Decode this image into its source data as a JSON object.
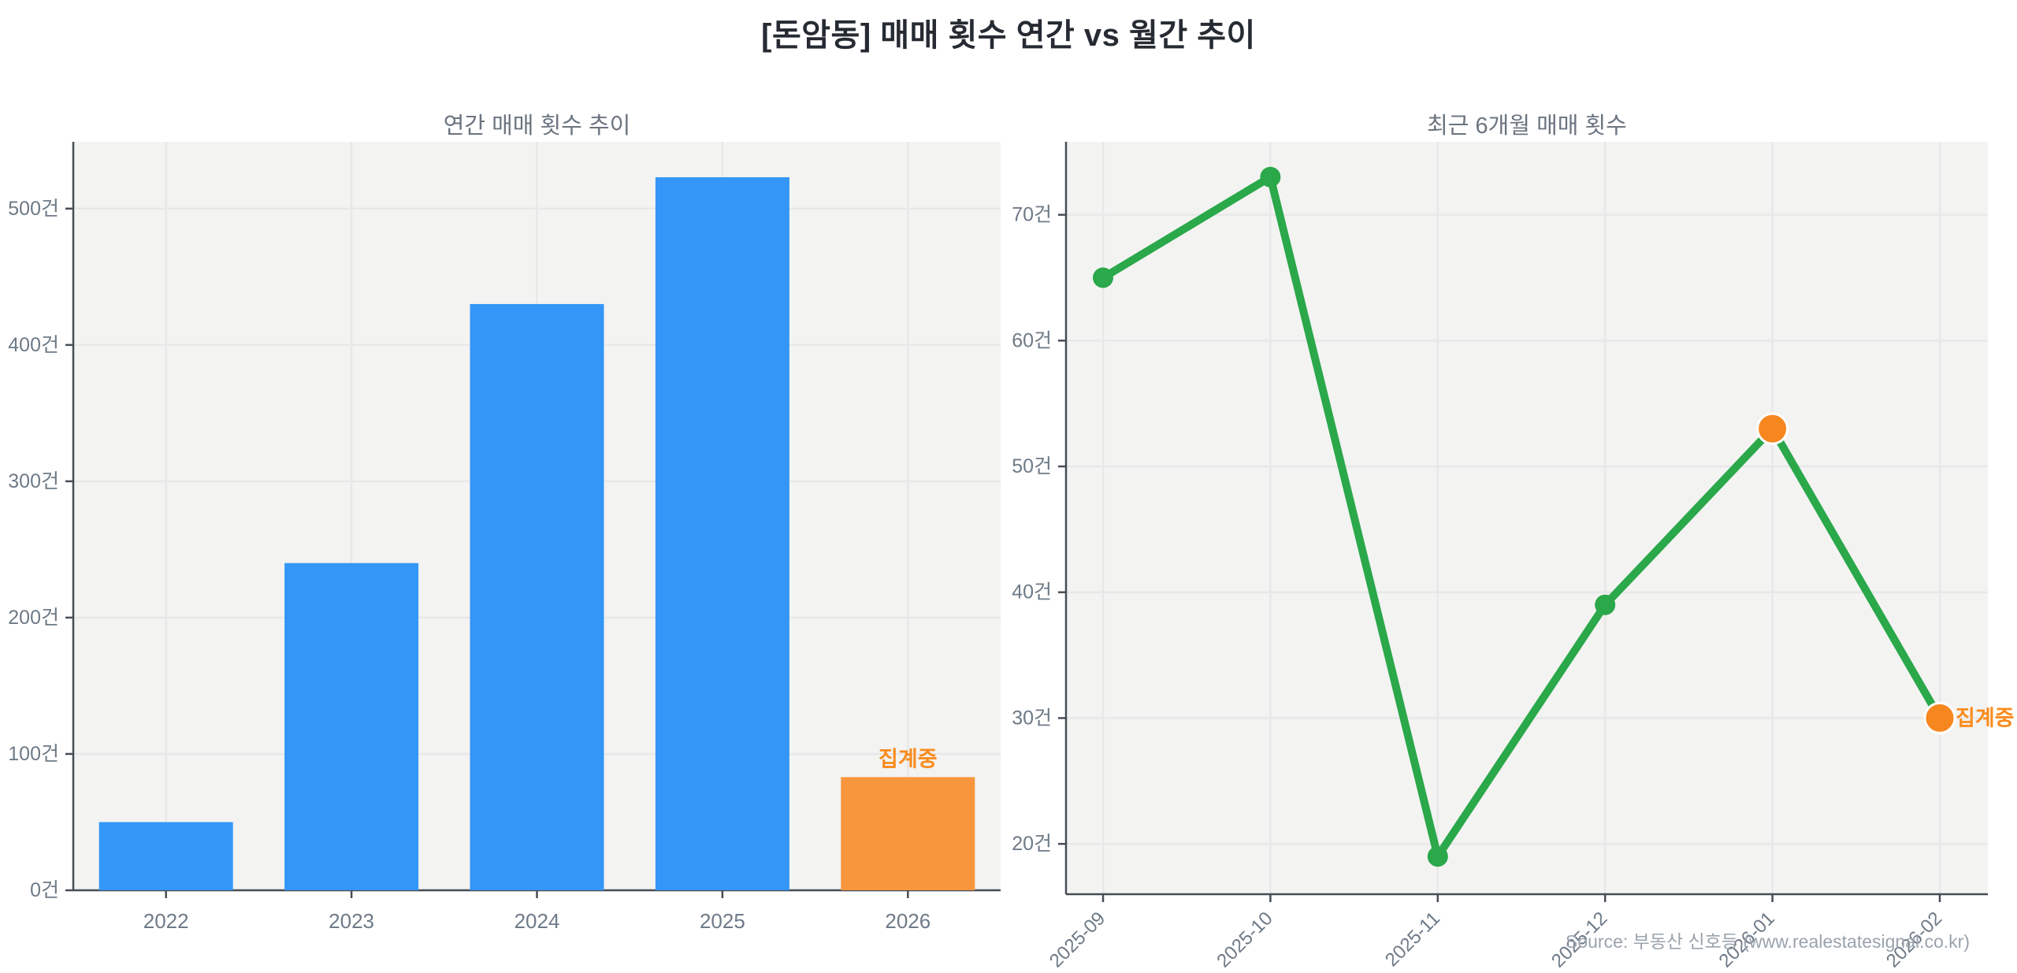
{
  "page": {
    "main_title": "[돈암동] 매매 횟수 연간 vs 월간 추이",
    "source_label": "Source: 부동산 신호등 (www.realestatesignal.co.kr)"
  },
  "colors": {
    "bar_blue": "#3496f6",
    "bar_orange": "#f8963e",
    "line_green": "#2aa84a",
    "marker_orange": "#f6871f",
    "annotation_orange": "#fa8c1e",
    "plot_bg": "#f3f3f2",
    "grid": "#e8e8e8",
    "spine": "#474d55",
    "tick_label": "#6e7a87",
    "subtitle": "#6b7480",
    "main_title": "#262b33",
    "source": "#9aa3ad"
  },
  "chart_data": [
    {
      "type": "bar",
      "title": "연간 매매 횟수 추이",
      "categories": [
        "2022",
        "2023",
        "2024",
        "2025",
        "2026"
      ],
      "values": [
        50,
        240,
        430,
        523,
        83
      ],
      "bar_colors": [
        "#3496f6",
        "#3496f6",
        "#3496f6",
        "#3496f6",
        "#f8963e"
      ],
      "annotation": {
        "text": "집계중",
        "target_index": 4,
        "color": "#fa8c1e"
      },
      "ytick_suffix": "건",
      "yticks": [
        0,
        100,
        200,
        300,
        400,
        500
      ],
      "ylim": [
        0,
        549
      ],
      "grid": true,
      "legend": null,
      "xlabel": "",
      "ylabel": ""
    },
    {
      "type": "line",
      "title": "최근 6개월 매매 횟수",
      "x": [
        "2025-09",
        "2025-10",
        "2025-11",
        "2025-12",
        "2026-01",
        "2026-02"
      ],
      "values": [
        65,
        73,
        19,
        39,
        53,
        30
      ],
      "line_color": "#2aa84a",
      "point_colors": [
        "#2aa84a",
        "#2aa84a",
        "#2aa84a",
        "#2aa84a",
        "#f6871f",
        "#f6871f"
      ],
      "point_radii": [
        13,
        13,
        13,
        13,
        19,
        19
      ],
      "annotation": {
        "text": "집계중",
        "target_index": 5,
        "color": "#fa8c1e"
      },
      "ytick_suffix": "건",
      "yticks": [
        20,
        30,
        40,
        50,
        60,
        70
      ],
      "ylim": [
        16,
        75.8
      ],
      "grid": true,
      "legend": null,
      "x_label_rotation": 45,
      "xlabel": "",
      "ylabel": ""
    }
  ]
}
